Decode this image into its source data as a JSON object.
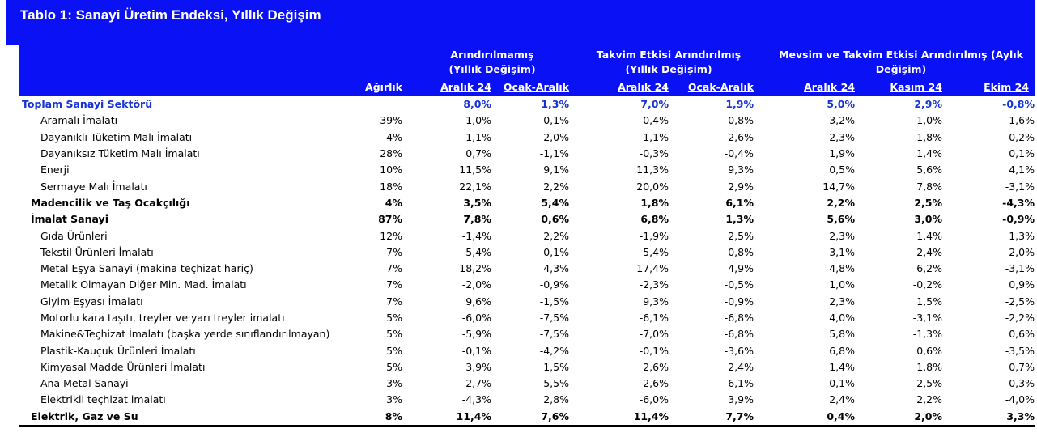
{
  "title": "Tablo 1: Sanayi Üretim Endeksi, Yıllık Değişim",
  "header": {
    "weight": "Ağırlık",
    "groups": [
      {
        "line1": "Arındırılmamış",
        "line2": "(Yıllık Değişim)"
      },
      {
        "line1": "Takvim Etkisi Arındırılmış",
        "line2": "(Yıllık Değişim)"
      },
      {
        "line1": "Mevsim ve Takvim Etkisi Arındırılmış (Aylık",
        "line2": "Değişim)"
      }
    ],
    "columns": [
      "Aralık 24",
      "Ocak-Aralık",
      "Aralık 24",
      "Ocak-Aralık",
      "Aralık 24",
      "Kasım 24",
      "Ekim 24"
    ]
  },
  "rows": [
    {
      "level": 0,
      "name": "Toplam Sanayi Sektörü",
      "weight": "",
      "values": [
        "8,0%",
        "1,3%",
        "7,0%",
        "1,9%",
        "5,0%",
        "2,9%",
        "-0,8%"
      ]
    },
    {
      "level": 2,
      "name": "Aramalı İmalatı",
      "weight": "39%",
      "values": [
        "1,0%",
        "0,1%",
        "0,4%",
        "0,8%",
        "3,2%",
        "1,0%",
        "-1,6%"
      ]
    },
    {
      "level": 2,
      "name": "Dayanıklı Tüketim Malı İmalatı",
      "weight": "4%",
      "values": [
        "1,1%",
        "2,0%",
        "1,1%",
        "2,6%",
        "2,3%",
        "-1,8%",
        "-0,2%"
      ]
    },
    {
      "level": 2,
      "name": "Dayanıksız Tüketim Malı İmalatı",
      "weight": "28%",
      "values": [
        "0,7%",
        "-1,1%",
        "-0,3%",
        "-0,4%",
        "1,9%",
        "1,4%",
        "0,1%"
      ]
    },
    {
      "level": 2,
      "name": "Enerji",
      "weight": "10%",
      "values": [
        "11,5%",
        "9,1%",
        "11,3%",
        "9,3%",
        "0,5%",
        "5,6%",
        "4,1%"
      ]
    },
    {
      "level": 2,
      "name": "Sermaye Malı İmalatı",
      "weight": "18%",
      "values": [
        "22,1%",
        "2,2%",
        "20,0%",
        "2,9%",
        "14,7%",
        "7,8%",
        "-3,1%"
      ]
    },
    {
      "level": 1,
      "name": "Madencilik ve Taş Ocakçılığı",
      "weight": "4%",
      "values": [
        "3,5%",
        "5,4%",
        "1,8%",
        "6,1%",
        "2,2%",
        "2,5%",
        "-4,3%"
      ]
    },
    {
      "level": 1,
      "name": "İmalat Sanayi",
      "weight": "87%",
      "values": [
        "7,8%",
        "0,6%",
        "6,8%",
        "1,3%",
        "5,6%",
        "3,0%",
        "-0,9%"
      ]
    },
    {
      "level": 2,
      "name": "Gıda Ürünleri",
      "weight": "12%",
      "values": [
        "-1,4%",
        "2,2%",
        "-1,9%",
        "2,5%",
        "2,3%",
        "1,4%",
        "1,3%"
      ]
    },
    {
      "level": 2,
      "name": "Tekstil Ürünleri İmalatı",
      "weight": "7%",
      "values": [
        "5,4%",
        "-0,1%",
        "5,4%",
        "0,8%",
        "3,1%",
        "2,4%",
        "-2,0%"
      ]
    },
    {
      "level": 2,
      "name": "Metal Eşya Sanayi (makina teçhizat hariç)",
      "weight": "7%",
      "values": [
        "18,2%",
        "4,3%",
        "17,4%",
        "4,9%",
        "4,8%",
        "6,2%",
        "-3,1%"
      ]
    },
    {
      "level": 2,
      "name": "Metalik Olmayan Diğer Min. Mad. İmalatı",
      "weight": "7%",
      "values": [
        "-2,0%",
        "-0,9%",
        "-2,3%",
        "-0,5%",
        "1,0%",
        "-0,2%",
        "0,9%"
      ]
    },
    {
      "level": 2,
      "name": "Giyim Eşyası İmalatı",
      "weight": "7%",
      "values": [
        "9,6%",
        "-1,5%",
        "9,3%",
        "-0,9%",
        "2,3%",
        "1,5%",
        "-2,5%"
      ]
    },
    {
      "level": 2,
      "name": "Motorlu kara taşıtı, treyler ve yarı treyler imalatı",
      "weight": "5%",
      "values": [
        "-6,0%",
        "-7,5%",
        "-6,1%",
        "-6,8%",
        "4,0%",
        "-3,1%",
        "-2,2%"
      ]
    },
    {
      "level": 2,
      "name": "Makine&Teçhizat İmalatı (başka yerde sınıflandırılmayan)",
      "weight": "5%",
      "values": [
        "-5,9%",
        "-7,5%",
        "-7,0%",
        "-6,8%",
        "5,8%",
        "-1,3%",
        "0,6%"
      ]
    },
    {
      "level": 2,
      "name": "Plastik-Kauçuk Ürünleri İmalatı",
      "weight": "5%",
      "values": [
        "-0,1%",
        "-4,2%",
        "-0,1%",
        "-3,6%",
        "6,8%",
        "0,6%",
        "-3,5%"
      ]
    },
    {
      "level": 2,
      "name": "Kimyasal Madde Ürünleri İmalatı",
      "weight": "5%",
      "values": [
        "3,9%",
        "1,5%",
        "2,6%",
        "2,4%",
        "1,4%",
        "1,8%",
        "0,7%"
      ]
    },
    {
      "level": 2,
      "name": "Ana Metal Sanayi",
      "weight": "3%",
      "values": [
        "2,7%",
        "5,5%",
        "2,6%",
        "6,1%",
        "0,1%",
        "2,5%",
        "0,3%"
      ]
    },
    {
      "level": 2,
      "name": "Elektrikli teçhizat imalatı",
      "weight": "3%",
      "values": [
        "-4,3%",
        "2,8%",
        "-6,0%",
        "3,9%",
        "2,4%",
        "2,2%",
        "-4,0%"
      ]
    },
    {
      "level": 1,
      "name": "Elektrik, Gaz ve Su",
      "weight": "8%",
      "values": [
        "11,4%",
        "7,6%",
        "11,4%",
        "7,7%",
        "0,4%",
        "2,0%",
        "3,3%"
      ]
    }
  ],
  "colors": {
    "header_bg": "#0a12f5",
    "header_text": "#ffffff",
    "total_row_text": "#1533d6"
  }
}
